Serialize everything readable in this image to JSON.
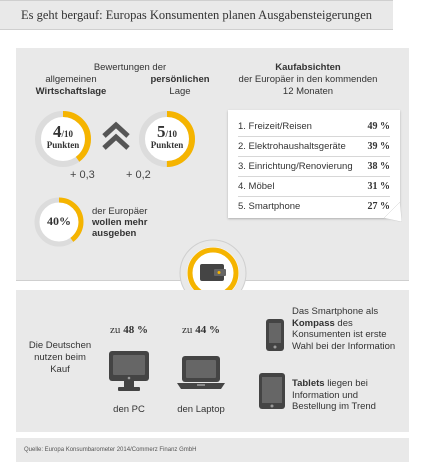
{
  "title": "Es geht bergauf: Europas Konsumenten planen Ausgabensteigerungen",
  "ratings": {
    "heading_line1": "Bewertungen der",
    "left_label_line1": "allgemeinen",
    "left_label_line2": "Wirtschaftslage",
    "right_label_line1": "persönlichen",
    "right_label_line2": "Lage",
    "left_score": "4",
    "right_score": "5",
    "score_denominator": "/10",
    "score_unit": "Punkten",
    "left_score_fraction": 0.4,
    "right_score_fraction": 0.5,
    "left_delta": "+ 0,3",
    "right_delta": "+ 0,2"
  },
  "spend": {
    "percent": "40%",
    "percent_fraction": 0.4,
    "text_line1": "der Europäer",
    "text_line2": "wollen mehr",
    "text_line3": "ausgeben"
  },
  "intentions": {
    "heading_line1": "Kaufabsichten",
    "heading_line2": "der Europäer in den kommenden",
    "heading_line3": "12 Monaten",
    "items": [
      {
        "label": "1. Freizeit/Reisen",
        "value": "49 %"
      },
      {
        "label": "2. Elektrohaushaltsgeräte",
        "value": "39 %"
      },
      {
        "label": "3. Einrichtung/Renovierung",
        "value": "38 %"
      },
      {
        "label": "4. Möbel",
        "value": "31 %"
      },
      {
        "label": "5. Smartphone",
        "value": "27 %"
      }
    ]
  },
  "devices": {
    "intro_line1": "Die Deutschen",
    "intro_line2": "nutzen beim",
    "intro_line3": "Kauf",
    "pc_prefix": "zu",
    "pc_value": "48 %",
    "pc_label": "den PC",
    "laptop_prefix": "zu",
    "laptop_value": "44 %",
    "laptop_label": "den Laptop",
    "smartphone_line1": "Das Smartphone als",
    "smartphone_line2": "Kompass",
    "smartphone_line2b": " des",
    "smartphone_line3": "Konsumenten ist erste",
    "smartphone_line4": "Wahl bei der Information",
    "tablet_line1": "Tablets",
    "tablet_line1b": " liegen bei",
    "tablet_line2": "Information und",
    "tablet_line3": "Bestellung im Trend"
  },
  "source": "Quelle: Europa Konsumbarometer 2014/Commerz Finanz GmbH",
  "colors": {
    "accent": "#f5b400",
    "panel": "#e9e9e9",
    "ring_track": "#dcdcdc",
    "icon": "#444444"
  }
}
